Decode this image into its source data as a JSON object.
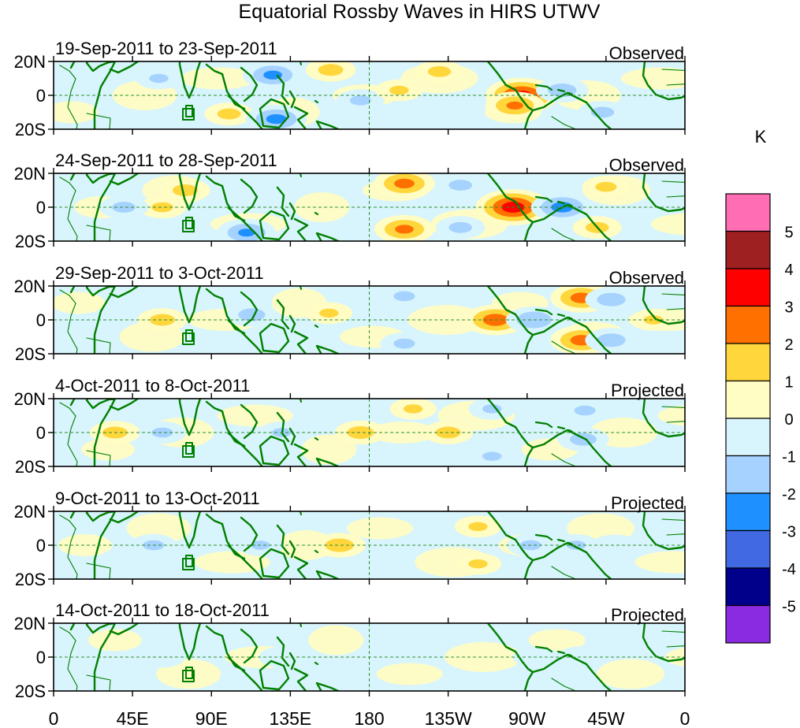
{
  "chart_data": {
    "type": "heatmap",
    "title": "Equatorial Rossby Waves in HIRS UTWV",
    "units": "K",
    "xlabel": "",
    "ylabel": "",
    "x_ticks": [
      "0",
      "45E",
      "90E",
      "135E",
      "180",
      "135W",
      "90W",
      "45W",
      "0"
    ],
    "y_ticks": [
      "20N",
      "0",
      "20S"
    ],
    "xlim": [
      0,
      360
    ],
    "ylim": [
      -20,
      20
    ],
    "colorbar": {
      "levels": [
        "5",
        "4",
        "3",
        "2",
        "1",
        "0",
        "-1",
        "-2",
        "-3",
        "-4",
        "-5"
      ],
      "colors": [
        "#ff6eb4",
        "#9e2020",
        "#ff0000",
        "#ff7000",
        "#ffd63c",
        "#fffcc4",
        "#d8f4fc",
        "#a6d2ff",
        "#1e90ff",
        "#4169e1",
        "#00008b",
        "#8a2be2"
      ]
    },
    "panels": [
      {
        "period": "19-Sep-2011 to 23-Sep-2011",
        "status": "Observed",
        "anomalies": [
          {
            "lon": 267,
            "lat": 0,
            "value": 3.5
          },
          {
            "lon": 263,
            "lat": -6,
            "value": 2.2
          },
          {
            "lon": 158,
            "lat": 15,
            "value": 1.4
          },
          {
            "lon": 220,
            "lat": 14,
            "value": 1.3
          },
          {
            "lon": 100,
            "lat": -11,
            "value": 1.3
          },
          {
            "lon": 125,
            "lat": 12,
            "value": -2.3
          },
          {
            "lon": 127,
            "lat": -14,
            "value": -2.4
          },
          {
            "lon": 290,
            "lat": 3,
            "value": -1.6
          },
          {
            "lon": 313,
            "lat": -10,
            "value": -1.3
          },
          {
            "lon": 60,
            "lat": 10,
            "value": -1.1
          },
          {
            "lon": 175,
            "lat": -3,
            "value": -1.2
          },
          {
            "lon": 197,
            "lat": 3,
            "value": 1.1
          }
        ]
      },
      {
        "period": "24-Sep-2011 to 28-Sep-2011",
        "status": "Observed",
        "anomalies": [
          {
            "lon": 262,
            "lat": 0,
            "value": 3.7
          },
          {
            "lon": 200,
            "lat": 14,
            "value": 2.4
          },
          {
            "lon": 200,
            "lat": -13,
            "value": 2.3
          },
          {
            "lon": 290,
            "lat": 0,
            "value": -2.5
          },
          {
            "lon": 110,
            "lat": -15,
            "value": -2.2
          },
          {
            "lon": 232,
            "lat": 13,
            "value": -1.3
          },
          {
            "lon": 232,
            "lat": -12,
            "value": -1.3
          },
          {
            "lon": 75,
            "lat": 10,
            "value": 1.4
          },
          {
            "lon": 62,
            "lat": 0,
            "value": 1.2
          },
          {
            "lon": 40,
            "lat": 0,
            "value": -1.3
          },
          {
            "lon": 315,
            "lat": 12,
            "value": 1.2
          },
          {
            "lon": 310,
            "lat": -12,
            "value": 1.3
          }
        ]
      },
      {
        "period": "29-Sep-2011 to 3-Oct-2011",
        "status": "Observed",
        "anomalies": [
          {
            "lon": 252,
            "lat": 0,
            "value": 2.7
          },
          {
            "lon": 301,
            "lat": 13,
            "value": 2.5
          },
          {
            "lon": 301,
            "lat": -12,
            "value": 2.5
          },
          {
            "lon": 274,
            "lat": 0,
            "value": -2.0
          },
          {
            "lon": 318,
            "lat": 12,
            "value": -1.6
          },
          {
            "lon": 318,
            "lat": -12,
            "value": -1.6
          },
          {
            "lon": 62,
            "lat": 0,
            "value": 1.4
          },
          {
            "lon": 113,
            "lat": 3,
            "value": -1.5
          },
          {
            "lon": 200,
            "lat": 14,
            "value": -1.2
          },
          {
            "lon": 200,
            "lat": -14,
            "value": -1.2
          },
          {
            "lon": 342,
            "lat": 0,
            "value": 1.1
          },
          {
            "lon": 157,
            "lat": 4,
            "value": 1.1
          }
        ]
      },
      {
        "period": "4-Oct-2011 to 8-Oct-2011",
        "status": "Projected",
        "anomalies": [
          {
            "lon": 175,
            "lat": 0,
            "value": 1.5
          },
          {
            "lon": 225,
            "lat": 0,
            "value": 1.4
          },
          {
            "lon": 302,
            "lat": -4,
            "value": -1.5
          },
          {
            "lon": 303,
            "lat": 13,
            "value": -1.2
          },
          {
            "lon": 35,
            "lat": 0,
            "value": 1.4
          },
          {
            "lon": 250,
            "lat": 14,
            "value": -1.1
          },
          {
            "lon": 250,
            "lat": -14,
            "value": -1.1
          },
          {
            "lon": 62,
            "lat": 0,
            "value": -1.2
          },
          {
            "lon": 205,
            "lat": 14,
            "value": 1.1
          },
          {
            "lon": 130,
            "lat": 0,
            "value": -1.1
          }
        ]
      },
      {
        "period": "9-Oct-2011 to 13-Oct-2011",
        "status": "Projected",
        "anomalies": [
          {
            "lon": 163,
            "lat": 0,
            "value": 1.6
          },
          {
            "lon": 272,
            "lat": 0,
            "value": -1.2
          },
          {
            "lon": 242,
            "lat": 11,
            "value": 1.1
          },
          {
            "lon": 242,
            "lat": -11,
            "value": 1.1
          },
          {
            "lon": 57,
            "lat": 0,
            "value": -1.2
          },
          {
            "lon": 118,
            "lat": 0,
            "value": -1.1
          },
          {
            "lon": 298,
            "lat": 0,
            "value": -1.1
          },
          {
            "lon": 320,
            "lat": 0,
            "value": -1.0
          }
        ]
      },
      {
        "period": "14-Oct-2011 to 18-Oct-2011",
        "status": "Projected",
        "anomalies": [
          {
            "lon": 300,
            "lat": 0,
            "value": -1.0
          },
          {
            "lon": 275,
            "lat": 0,
            "value": -1.0
          },
          {
            "lon": 62,
            "lat": 0,
            "value": -1.0
          },
          {
            "lon": 130,
            "lat": 0,
            "value": -1.0
          }
        ]
      }
    ]
  }
}
